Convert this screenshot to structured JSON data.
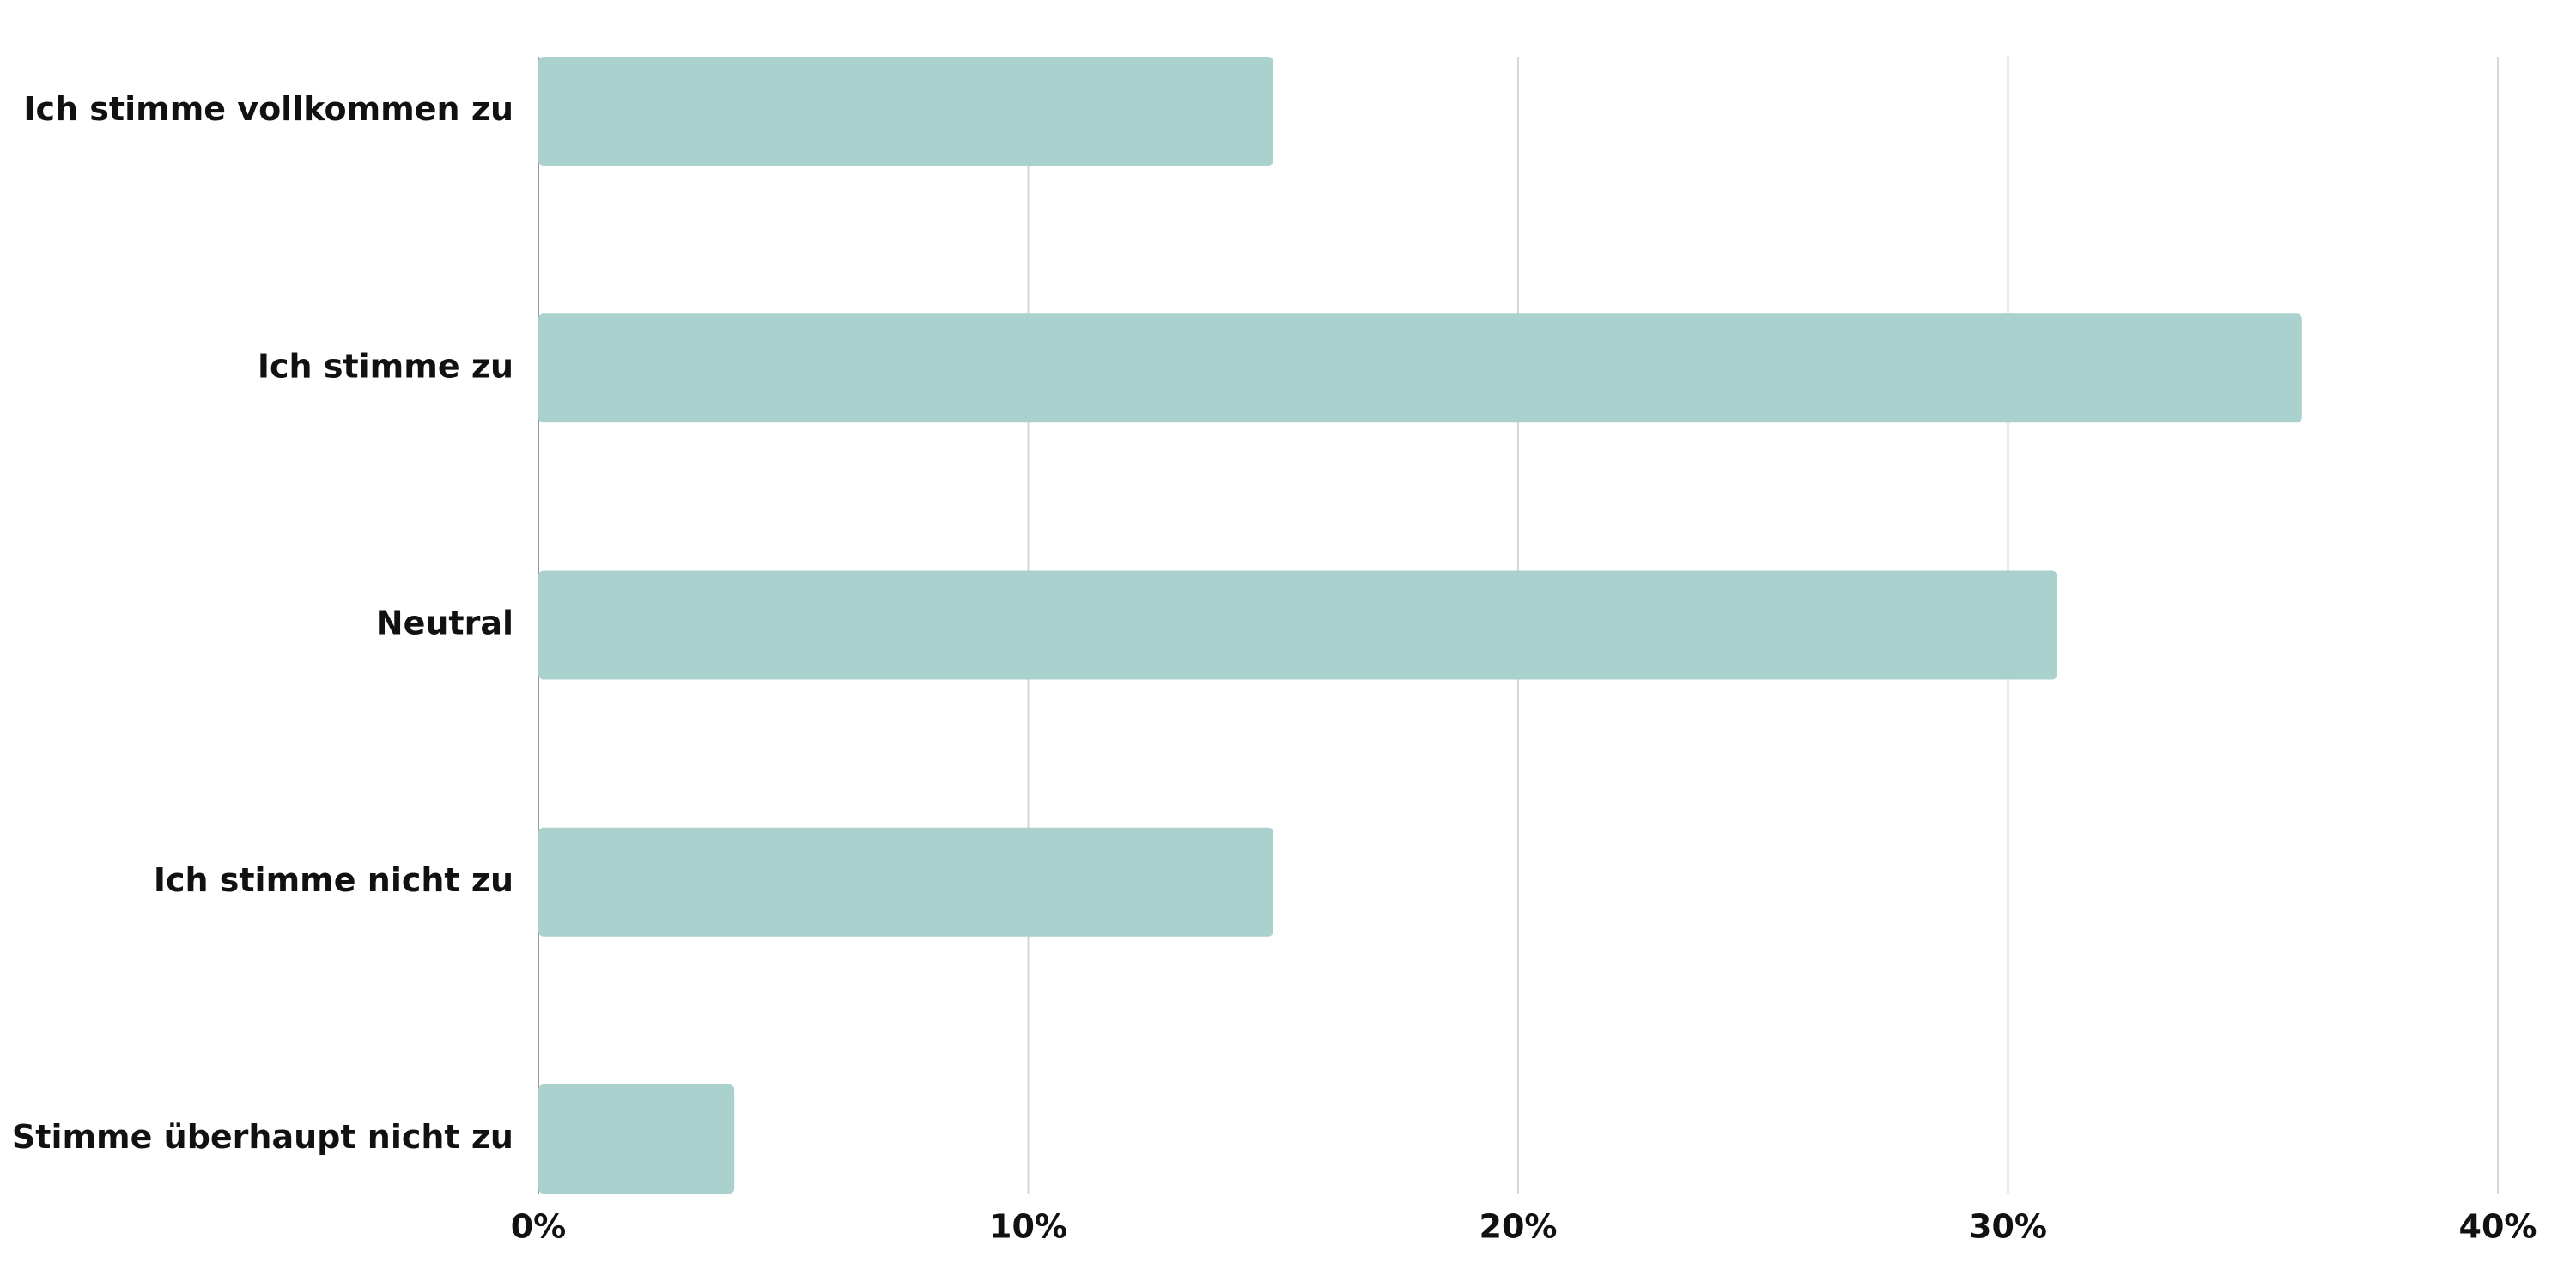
{
  "chart_data": {
    "type": "hbar",
    "categories": [
      "Ich stimme vollkommen zu",
      "Ich stimme zu",
      "Neutral",
      "Ich stimme nicht zu",
      "Stimme überhaupt nicht zu"
    ],
    "values": [
      15,
      36,
      31,
      15,
      4
    ],
    "color": "#aad1cd",
    "xlim": [
      0,
      40
    ],
    "xticks": [
      {
        "value": 0,
        "label": "0%"
      },
      {
        "value": 10,
        "label": "10%"
      },
      {
        "value": 20,
        "label": "20%"
      },
      {
        "value": 30,
        "label": "30%"
      },
      {
        "value": 40,
        "label": "40%"
      }
    ],
    "grid": true
  }
}
